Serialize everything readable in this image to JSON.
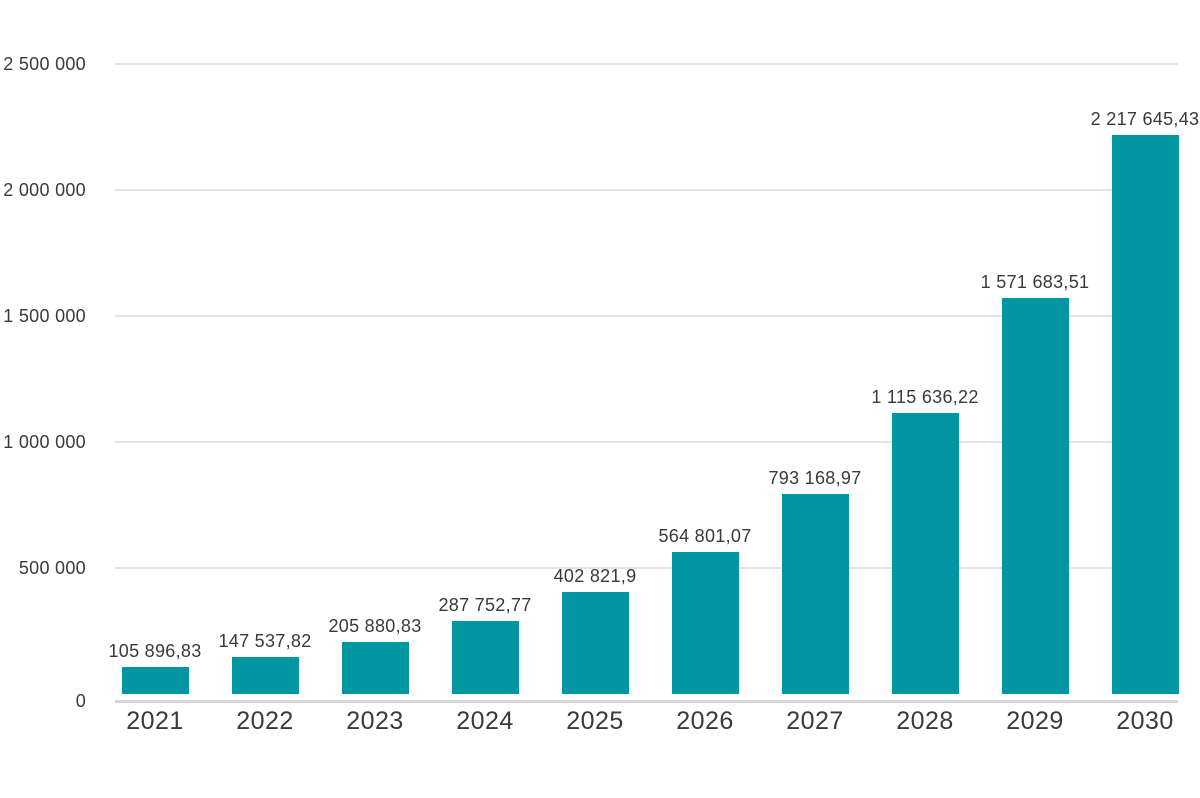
{
  "chart_data": {
    "type": "bar",
    "title": "",
    "xlabel": "",
    "ylabel": "",
    "categories": [
      "2021",
      "2022",
      "2023",
      "2024",
      "2025",
      "2026",
      "2027",
      "2028",
      "2029",
      "2030"
    ],
    "values": [
      105896.83,
      147537.82,
      205880.83,
      287752.77,
      402821.9,
      564801.07,
      793168.97,
      1115636.22,
      1571683.51,
      2217645.43
    ],
    "value_labels": [
      "105 896,83",
      "147 537,82",
      "205 880,83",
      "287 752,77",
      "402 821,9",
      "564 801,07",
      "793 168,97",
      "1 115 636,22",
      "1 571 683,51",
      "2 217 645,43"
    ],
    "ylim": [
      0,
      2500000
    ],
    "yticks": [
      {
        "value": 0,
        "label": "0"
      },
      {
        "value": 500000,
        "label": "500 000"
      },
      {
        "value": 1000000,
        "label": "1 000 000"
      },
      {
        "value": 1500000,
        "label": "1 500 000"
      },
      {
        "value": 2000000,
        "label": "2 000 000"
      },
      {
        "value": 2500000,
        "label": "2 500 000"
      }
    ],
    "grid": true,
    "legend": false,
    "colors": {
      "bar": "#0097A3",
      "gridline": "#e3e3e3",
      "axis_line": "#d6d6d6",
      "text": "#3a3a3a",
      "background": "#ffffff"
    }
  }
}
